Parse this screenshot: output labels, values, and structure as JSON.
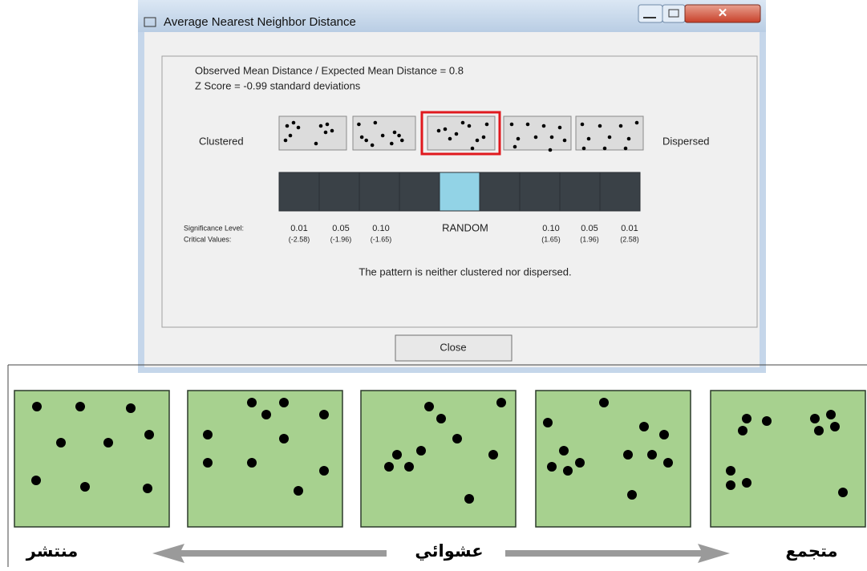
{
  "window": {
    "title": "Average Nearest Neighbor Distance",
    "ratio_line": "Observed Mean Distance / Expected Mean Distance = 0.8",
    "z_line": "Z Score = -0.99 standard deviations",
    "left_label": "Clustered",
    "right_label": "Dispersed",
    "significance_label": "Significance Level:",
    "critical_label": "Critical Values:",
    "levels": [
      {
        "significance": "0.01",
        "critical": "(-2.58)"
      },
      {
        "significance": "0.05",
        "critical": "(-1.96)"
      },
      {
        "significance": "0.10",
        "critical": "(-1.65)"
      },
      {
        "significance": "0.10",
        "critical": "(1.65)"
      },
      {
        "significance": "0.05",
        "critical": "(1.96)"
      },
      {
        "significance": "0.01",
        "critical": "(2.58)"
      }
    ],
    "random_label": "RANDOM",
    "message": "The pattern is neither clustered nor dispersed.",
    "close_button": "Close"
  },
  "diagram": {
    "labels": [
      "منتشر",
      "عشوائي",
      "متجمع"
    ]
  }
}
